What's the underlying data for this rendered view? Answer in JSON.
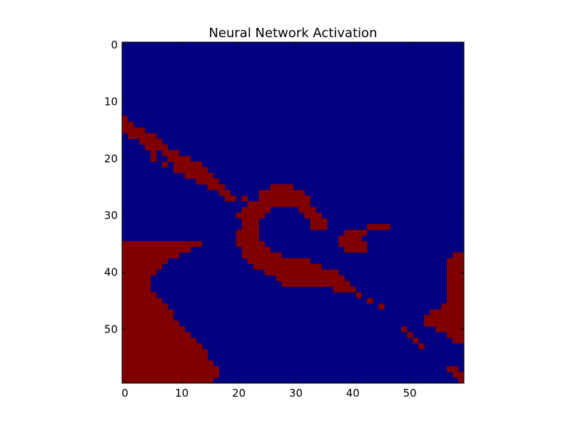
{
  "chart_data": {
    "type": "heatmap",
    "title": "Neural Network Activation",
    "xlabel": "",
    "ylabel": "",
    "grid": false,
    "xlim": [
      0,
      60
    ],
    "ylim": [
      60,
      0
    ],
    "x_ticks": [
      0,
      10,
      20,
      30,
      40,
      50
    ],
    "y_ticks": [
      0,
      10,
      20,
      30,
      40,
      50
    ],
    "colors": {
      "inactive": "#000080",
      "active": "#800000"
    },
    "rows": 60,
    "cols": 60,
    "active_runs": [
      [
        13,
        [
          [
            0,
            1
          ]
        ]
      ],
      [
        14,
        [
          [
            0,
            2
          ]
        ]
      ],
      [
        15,
        [
          [
            0,
            4
          ]
        ]
      ],
      [
        16,
        [
          [
            1,
            6
          ]
        ]
      ],
      [
        17,
        [
          [
            3,
            7
          ]
        ]
      ],
      [
        18,
        [
          [
            4,
            8
          ]
        ]
      ],
      [
        19,
        [
          [
            5,
            6
          ],
          [
            7,
            10
          ]
        ]
      ],
      [
        20,
        [
          [
            5,
            6
          ],
          [
            8,
            12
          ]
        ]
      ],
      [
        21,
        [
          [
            7,
            8
          ],
          [
            9,
            14
          ]
        ]
      ],
      [
        22,
        [
          [
            9,
            15
          ]
        ]
      ],
      [
        23,
        [
          [
            11,
            16
          ]
        ]
      ],
      [
        24,
        [
          [
            13,
            17
          ]
        ]
      ],
      [
        25,
        [
          [
            15,
            18
          ],
          [
            26,
            30
          ]
        ]
      ],
      [
        26,
        [
          [
            17,
            19
          ],
          [
            24,
            32
          ]
        ]
      ],
      [
        27,
        [
          [
            18,
            20
          ],
          [
            21,
            22
          ],
          [
            24,
            33
          ]
        ]
      ],
      [
        28,
        [
          [
            22,
            33
          ]
        ]
      ],
      [
        29,
        [
          [
            21,
            26
          ],
          [
            31,
            34
          ]
        ]
      ],
      [
        30,
        [
          [
            20,
            25
          ],
          [
            32,
            35
          ]
        ]
      ],
      [
        31,
        [
          [
            21,
            24
          ],
          [
            33,
            36
          ]
        ]
      ],
      [
        32,
        [
          [
            21,
            24
          ],
          [
            33,
            36
          ],
          [
            43,
            47
          ]
        ]
      ],
      [
        33,
        [
          [
            20,
            24
          ],
          [
            39,
            43
          ]
        ]
      ],
      [
        34,
        [
          [
            20,
            24
          ],
          [
            38,
            42
          ]
        ]
      ],
      [
        35,
        [
          [
            0,
            14
          ],
          [
            20,
            25
          ],
          [
            38,
            43
          ]
        ]
      ],
      [
        36,
        [
          [
            0,
            12
          ],
          [
            21,
            26
          ],
          [
            39,
            43
          ]
        ]
      ],
      [
        37,
        [
          [
            0,
            10
          ],
          [
            21,
            28
          ],
          [
            58,
            60
          ]
        ]
      ],
      [
        38,
        [
          [
            0,
            8
          ],
          [
            22,
            33
          ],
          [
            57,
            60
          ]
        ]
      ],
      [
        39,
        [
          [
            0,
            7
          ],
          [
            23,
            35
          ],
          [
            57,
            60
          ]
        ]
      ],
      [
        40,
        [
          [
            0,
            6
          ],
          [
            25,
            38
          ],
          [
            57,
            60
          ]
        ]
      ],
      [
        41,
        [
          [
            0,
            5
          ],
          [
            27,
            39
          ],
          [
            57,
            60
          ]
        ]
      ],
      [
        42,
        [
          [
            0,
            5
          ],
          [
            28,
            40
          ],
          [
            57,
            60
          ]
        ]
      ],
      [
        43,
        [
          [
            0,
            5
          ],
          [
            37,
            41
          ],
          [
            57,
            60
          ]
        ]
      ],
      [
        44,
        [
          [
            0,
            6
          ],
          [
            41,
            42
          ],
          [
            57,
            60
          ]
        ]
      ],
      [
        45,
        [
          [
            0,
            7
          ],
          [
            43,
            44
          ],
          [
            57,
            60
          ]
        ]
      ],
      [
        46,
        [
          [
            0,
            8
          ],
          [
            45,
            46
          ],
          [
            56,
            60
          ]
        ]
      ],
      [
        47,
        [
          [
            0,
            9
          ],
          [
            54,
            60
          ]
        ]
      ],
      [
        48,
        [
          [
            0,
            9
          ],
          [
            53,
            60
          ]
        ]
      ],
      [
        49,
        [
          [
            0,
            10
          ],
          [
            53,
            60
          ]
        ]
      ],
      [
        50,
        [
          [
            0,
            11
          ],
          [
            49,
            50
          ],
          [
            55,
            60
          ]
        ]
      ],
      [
        51,
        [
          [
            0,
            12
          ],
          [
            50,
            51
          ],
          [
            57,
            60
          ]
        ]
      ],
      [
        52,
        [
          [
            0,
            13
          ],
          [
            51,
            52
          ],
          [
            58,
            60
          ]
        ]
      ],
      [
        53,
        [
          [
            0,
            14
          ],
          [
            52,
            53
          ]
        ]
      ],
      [
        54,
        [
          [
            0,
            15
          ]
        ]
      ],
      [
        55,
        [
          [
            0,
            15
          ]
        ]
      ],
      [
        56,
        [
          [
            0,
            16
          ]
        ]
      ],
      [
        57,
        [
          [
            0,
            17
          ],
          [
            57,
            59
          ]
        ]
      ],
      [
        58,
        [
          [
            0,
            17
          ],
          [
            58,
            60
          ]
        ]
      ],
      [
        59,
        [
          [
            0,
            16
          ],
          [
            59,
            60
          ]
        ]
      ]
    ]
  }
}
